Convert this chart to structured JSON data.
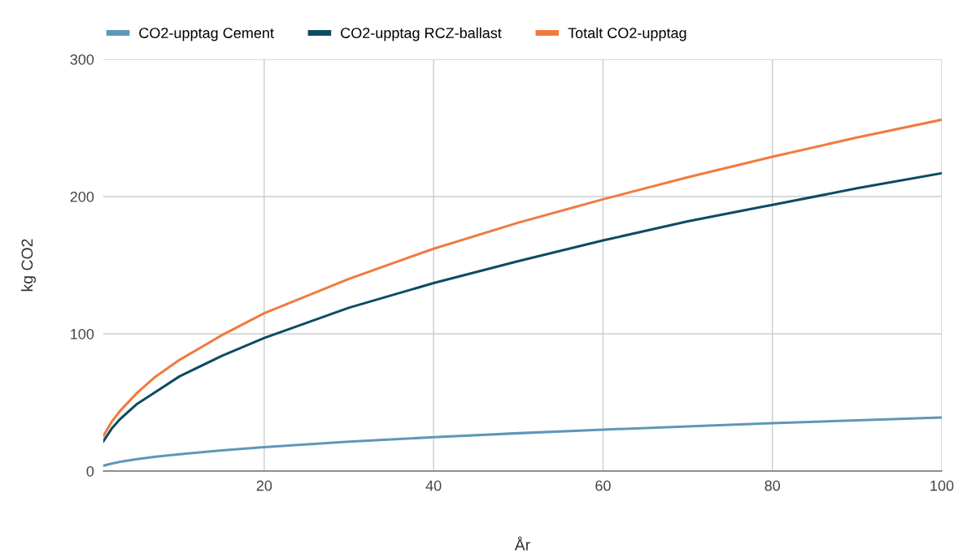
{
  "chart_data": {
    "type": "line",
    "xlabel": "År",
    "ylabel": "kg CO2",
    "x": [
      1,
      2,
      3,
      5,
      7,
      10,
      15,
      20,
      30,
      40,
      50,
      60,
      70,
      80,
      90,
      100
    ],
    "series": [
      {
        "name": "CO2-upptag Cement",
        "color": "#5e97b8",
        "values": [
          3.9,
          5.5,
          6.8,
          8.7,
          10.3,
          12.3,
          15.1,
          17.4,
          21.4,
          24.7,
          27.6,
          30.2,
          32.6,
          34.9,
          37,
          39
        ]
      },
      {
        "name": "CO2-upptag RCZ-ballast",
        "color": "#0d4b63",
        "values": [
          21.7,
          31,
          38,
          49,
          57,
          69,
          84,
          97,
          119,
          137,
          153,
          168,
          182,
          194,
          206,
          217
        ]
      },
      {
        "name": "Totalt CO2-upptag",
        "color": "#f07b3f",
        "values": [
          25.6,
          36,
          44,
          57,
          68,
          81,
          99,
          115,
          140,
          162,
          181,
          198,
          214,
          229,
          243,
          256
        ]
      }
    ],
    "xlim": [
      1,
      100
    ],
    "xticks": [
      20,
      40,
      60,
      80,
      100
    ],
    "ylim": [
      0,
      300
    ],
    "yticks": [
      0,
      100,
      200,
      300
    ],
    "grid": true,
    "legend": "top left"
  }
}
